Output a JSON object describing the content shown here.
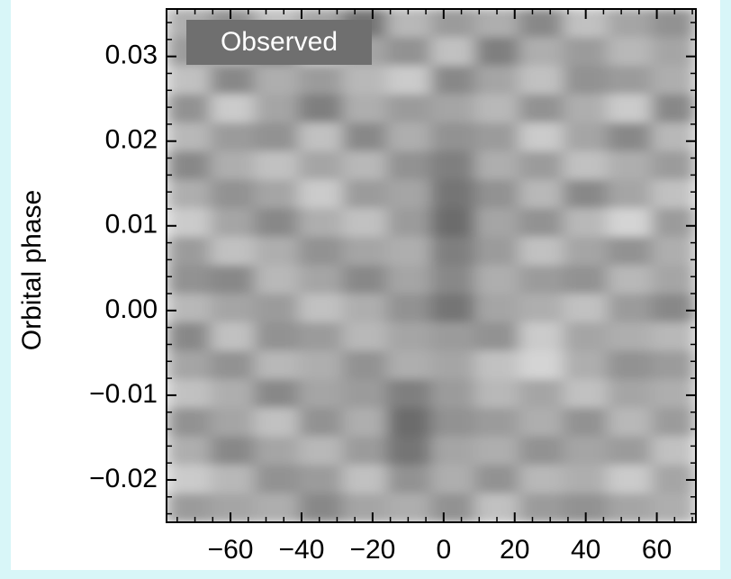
{
  "chart_data": {
    "type": "heatmap",
    "ylabel": "Orbital phase",
    "annotation": "Observed",
    "xlim": [
      -78,
      71
    ],
    "ylim": [
      -0.025,
      0.0356
    ],
    "xticks": [
      {
        "value": -60,
        "label": "−60"
      },
      {
        "value": -40,
        "label": "−40"
      },
      {
        "value": -20,
        "label": "−20"
      },
      0,
      20,
      40,
      60
    ],
    "yticks": [
      {
        "value": -0.02,
        "label": "−0.02"
      },
      {
        "value": -0.01,
        "label": "−0.01"
      },
      {
        "value": 0,
        "label": "0.00"
      },
      0.01,
      0.02,
      0.03
    ],
    "z": [
      [
        60,
        45,
        70,
        55,
        30,
        65,
        50,
        60,
        40,
        70,
        55,
        45
      ],
      [
        50,
        65,
        40,
        75,
        55,
        45,
        70,
        35,
        60,
        50,
        65,
        55
      ],
      [
        70,
        40,
        60,
        50,
        65,
        75,
        40,
        55,
        70,
        45,
        50,
        60
      ],
      [
        45,
        75,
        55,
        35,
        60,
        50,
        55,
        65,
        45,
        60,
        75,
        40
      ],
      [
        65,
        50,
        45,
        70,
        40,
        60,
        45,
        50,
        75,
        55,
        40,
        65
      ],
      [
        40,
        60,
        70,
        55,
        65,
        45,
        35,
        60,
        50,
        70,
        60,
        50
      ],
      [
        60,
        45,
        55,
        75,
        50,
        55,
        30,
        45,
        65,
        40,
        55,
        70
      ],
      [
        75,
        55,
        40,
        60,
        70,
        50,
        25,
        55,
        45,
        65,
        80,
        50
      ],
      [
        50,
        70,
        60,
        45,
        55,
        60,
        35,
        50,
        70,
        55,
        45,
        60
      ],
      [
        45,
        40,
        65,
        55,
        40,
        55,
        40,
        60,
        50,
        45,
        65,
        55
      ],
      [
        65,
        55,
        50,
        70,
        60,
        45,
        30,
        55,
        60,
        70,
        50,
        40
      ],
      [
        40,
        70,
        45,
        50,
        65,
        55,
        50,
        45,
        75,
        55,
        60,
        65
      ],
      [
        55,
        45,
        65,
        60,
        45,
        60,
        55,
        70,
        80,
        60,
        45,
        50
      ],
      [
        70,
        60,
        40,
        55,
        50,
        35,
        50,
        65,
        55,
        70,
        55,
        60
      ],
      [
        45,
        55,
        70,
        45,
        60,
        25,
        45,
        50,
        60,
        45,
        65,
        50
      ],
      [
        60,
        40,
        55,
        65,
        50,
        30,
        55,
        60,
        45,
        55,
        50,
        70
      ],
      [
        75,
        65,
        45,
        50,
        70,
        45,
        60,
        45,
        65,
        60,
        75,
        55
      ],
      [
        50,
        55,
        60,
        40,
        55,
        60,
        45,
        70,
        50,
        45,
        55,
        60
      ]
    ]
  }
}
